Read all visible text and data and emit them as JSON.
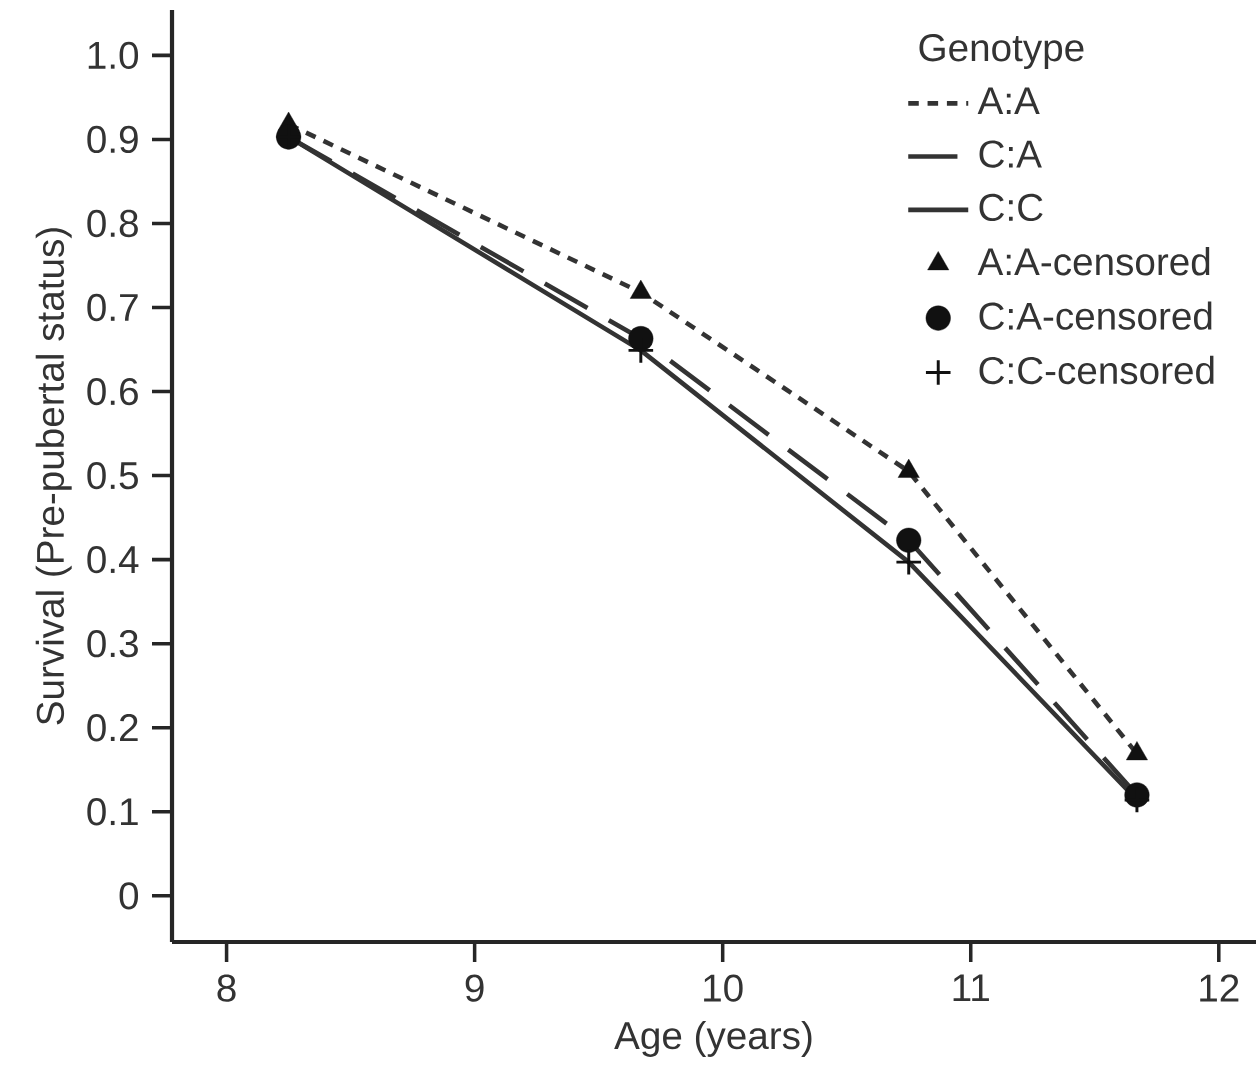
{
  "chart_data": {
    "type": "line",
    "xlabel": "Age (years)",
    "ylabel": "Survival (Pre-pubertal status)",
    "legend_title": "Genotype",
    "x": [
      8.25,
      9.67,
      10.75,
      11.67
    ],
    "series": [
      {
        "name": "A:A",
        "line_style": "dotted",
        "marker": "none",
        "color": "#333333",
        "values": [
          0.918,
          0.718,
          0.505,
          0.169
        ]
      },
      {
        "name": "C:A",
        "line_style": "dashed",
        "marker": "none",
        "color": "#333333",
        "values": [
          0.903,
          0.663,
          0.423,
          0.12
        ]
      },
      {
        "name": "C:C",
        "line_style": "solid",
        "marker": "none",
        "color": "#333333",
        "values": [
          0.903,
          0.649,
          0.397,
          0.114
        ]
      },
      {
        "name": "A:A-censored",
        "type": "scatter",
        "marker": "triangle",
        "color": "#111111",
        "values": [
          0.918,
          0.718,
          0.505,
          0.169
        ]
      },
      {
        "name": "C:A-censored",
        "type": "scatter",
        "marker": "circle",
        "color": "#111111",
        "values": [
          0.903,
          0.663,
          0.423,
          0.12
        ]
      },
      {
        "name": "C:C-censored",
        "type": "scatter",
        "marker": "cross",
        "color": "#111111",
        "values": [
          0.903,
          0.649,
          0.397,
          0.114
        ]
      }
    ],
    "xlim": [
      7.78,
      12.15
    ],
    "ylim": [
      -0.055,
      1.054
    ],
    "xticks": [
      8,
      9,
      10,
      11,
      12
    ],
    "yticks": [
      0,
      0.1,
      0.2,
      0.3,
      0.4,
      0.5,
      0.6,
      0.7,
      0.8,
      0.9,
      {
        "value": 1.0,
        "label": "1.0"
      }
    ],
    "legend": "top right"
  }
}
